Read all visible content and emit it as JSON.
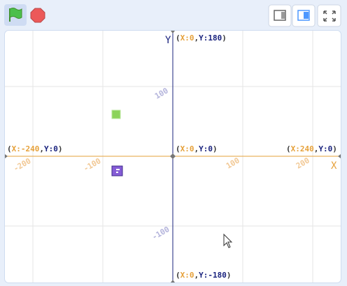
{
  "stage": {
    "axis_titles": {
      "y": "Y",
      "x": "X"
    },
    "coordinate_labels": [
      [
        "(",
        "X:0",
        ",",
        "Y:180",
        ")"
      ],
      [
        "(",
        "X:-240",
        ",",
        "Y:0",
        ")"
      ],
      [
        "(",
        "X:0",
        ",",
        "Y:0",
        ")"
      ],
      [
        "(",
        "X:240",
        ",",
        "Y:0",
        ")"
      ],
      [
        "(",
        "X:0",
        ",",
        "Y:-180",
        ")"
      ]
    ],
    "y_ticks": [
      "100",
      "-100"
    ],
    "x_ticks": [
      "-200",
      "-100",
      "100",
      "200"
    ]
  }
}
